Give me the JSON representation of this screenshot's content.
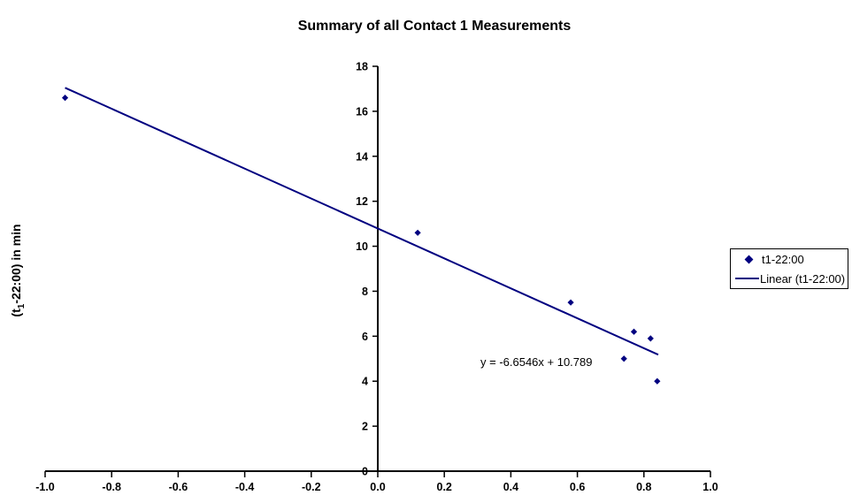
{
  "chart_data": {
    "type": "scatter",
    "title": "Summary of all Contact 1 Measurements",
    "xlabel": "",
    "ylabel": {
      "pre": "(t",
      "sub": "1",
      "post": "-22:00) in min"
    },
    "grid": false,
    "background": "#ffffff",
    "axis_color": "#000000",
    "series": [
      {
        "name": "t1-22:00",
        "color": "#000080",
        "marker": "diamond",
        "points": [
          [
            -0.94,
            16.6
          ],
          [
            0.12,
            10.6
          ],
          [
            0.58,
            7.5
          ],
          [
            0.74,
            5.0
          ],
          [
            0.77,
            6.2
          ],
          [
            0.82,
            5.9
          ],
          [
            0.84,
            4.0
          ]
        ]
      }
    ],
    "trendline": {
      "name": "Linear (t1-22:00)",
      "color": "#000080",
      "slope": -6.6546,
      "intercept": 10.789,
      "x_start": -0.94,
      "x_end": 0.843,
      "equation_label": "y = -6.6546x + 10.789"
    },
    "x_axis": {
      "min": -1.0,
      "max": 1.0,
      "tick_values": [
        -1.0,
        -0.8,
        -0.6,
        -0.4,
        -0.2,
        0.0,
        0.2,
        0.4,
        0.6,
        0.8,
        1.0
      ],
      "tick_labels": [
        "-1.0",
        "-0.8",
        "-0.6",
        "-0.4",
        "-0.2",
        "0.0",
        "0.2",
        "0.4",
        "0.6",
        "0.8",
        "1.0"
      ]
    },
    "y_axis": {
      "min": 0,
      "max": 18,
      "tick_values": [
        0,
        2,
        4,
        6,
        8,
        10,
        12,
        14,
        16,
        18
      ],
      "tick_labels": [
        "0",
        "2",
        "4",
        "6",
        "8",
        "10",
        "12",
        "14",
        "16",
        "18"
      ]
    },
    "legend": {
      "position": "right",
      "entries": [
        {
          "label": "t1-22:00",
          "marker": "diamond"
        },
        {
          "label": "Linear (t1-22:00)",
          "marker": "line"
        }
      ]
    }
  }
}
